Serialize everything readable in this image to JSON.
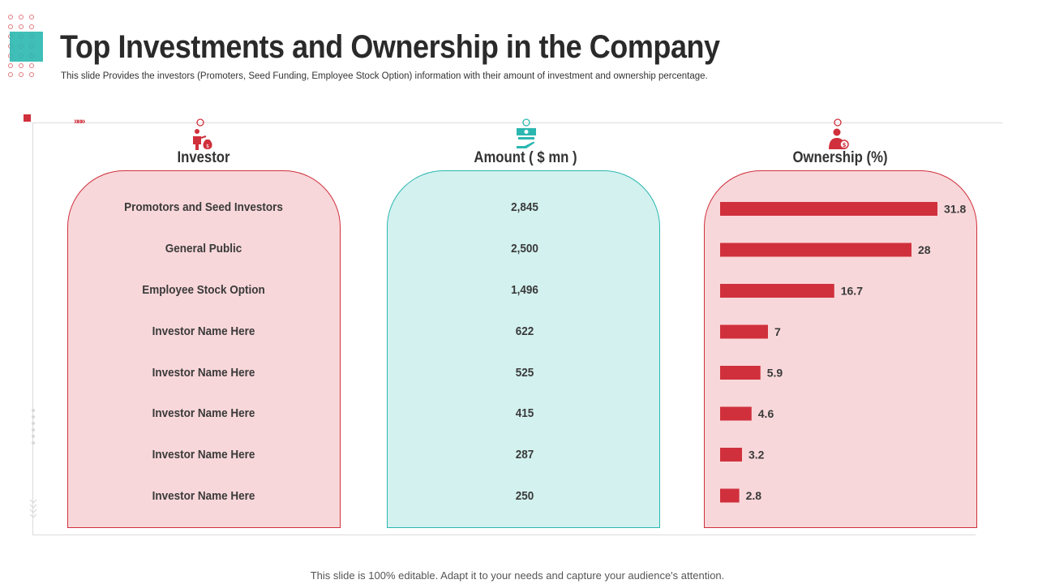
{
  "header": {
    "title": "Top Investments and Ownership in the Company",
    "subtitle": "This slide Provides the investors (Promoters, Seed Funding, Employee Stock Option) information with their amount of investment and ownership percentage."
  },
  "columns": {
    "investor": "Investor",
    "amount": "Amount ( $ mn )",
    "ownership": "Ownership (%)"
  },
  "rows": [
    {
      "investor": "Promotors and Seed Investors",
      "amount": "2,845",
      "ownership": "31.8"
    },
    {
      "investor": "General Public",
      "amount": "2,500",
      "ownership": "28"
    },
    {
      "investor": "Employee Stock Option",
      "amount": "1,496",
      "ownership": "16.7"
    },
    {
      "investor": "Investor Name Here",
      "amount": "622",
      "ownership": "7"
    },
    {
      "investor": "Investor Name Here",
      "amount": "525",
      "ownership": "5.9"
    },
    {
      "investor": "Investor Name Here",
      "amount": "415",
      "ownership": "4.6"
    },
    {
      "investor": "Investor Name Here",
      "amount": "287",
      "ownership": "3.2"
    },
    {
      "investor": "Investor Name Here",
      "amount": "250",
      "ownership": "2.8"
    }
  ],
  "chart_data": {
    "type": "bar",
    "orientation": "horizontal",
    "title": "Ownership (%)",
    "categories": [
      "Promotors and Seed Investors",
      "General Public",
      "Employee Stock Option",
      "Investor Name Here",
      "Investor Name Here",
      "Investor Name Here",
      "Investor Name Here",
      "Investor Name Here"
    ],
    "values": [
      31.8,
      28,
      16.7,
      7,
      5.9,
      4.6,
      3.2,
      2.8
    ],
    "xlim": [
      0,
      32
    ],
    "bar_color": "#d0303c"
  },
  "icons": {
    "investor": "investor-money-bag-icon",
    "amount": "cash-in-hand-icon",
    "ownership": "person-dollar-icon"
  },
  "colors": {
    "accent_red": "#d0303c",
    "accent_teal": "#2bb7b0",
    "pink_fill": "#f8d7da",
    "teal_fill": "#d2f1ef"
  },
  "decor": {
    "chevrons": "»»»"
  },
  "footer": "This slide is 100% editable. Adapt it to your needs and capture your audience's attention."
}
